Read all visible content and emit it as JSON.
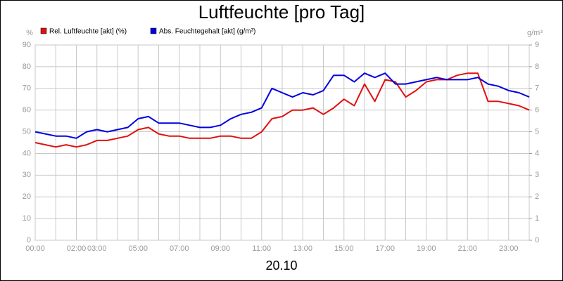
{
  "chart_data": {
    "type": "line",
    "title": "Luftfeuchte [pro Tag]",
    "xlabel": "20.10",
    "ylabel": "%",
    "y2label": "g/m³",
    "x": [
      0,
      0.5,
      1,
      1.5,
      2,
      2.5,
      3,
      3.5,
      4,
      4.5,
      5,
      5.5,
      6,
      6.5,
      7,
      7.5,
      8,
      8.5,
      9,
      9.5,
      10,
      10.5,
      11,
      11.5,
      12,
      12.5,
      13,
      13.5,
      14,
      14.5,
      15,
      15.5,
      16,
      16.5,
      17,
      17.5,
      18,
      18.5,
      19,
      19.5,
      20,
      20.5,
      21,
      21.5,
      22,
      22.5,
      23,
      23.5,
      24
    ],
    "series": [
      {
        "name": "Rel. Luftfeuchte [akt] (%)",
        "color": "#e01010",
        "axis": "y",
        "values": [
          45,
          44,
          43,
          44,
          43,
          44,
          46,
          46,
          47,
          48,
          51,
          52,
          49,
          48,
          48,
          47,
          47,
          47,
          48,
          48,
          47,
          47,
          50,
          56,
          57,
          60,
          60,
          61,
          58,
          61,
          65,
          62,
          72,
          64,
          74,
          73,
          66,
          69,
          73,
          74,
          74,
          76,
          77,
          77,
          64,
          64,
          63,
          62,
          60
        ]
      },
      {
        "name": "Abs. Feuchtegehalt [akt] (g/m³)",
        "color": "#0000e0",
        "axis": "y2",
        "values": [
          5.0,
          4.9,
          4.8,
          4.8,
          4.7,
          5.0,
          5.1,
          5.0,
          5.1,
          5.2,
          5.6,
          5.7,
          5.4,
          5.4,
          5.4,
          5.3,
          5.2,
          5.2,
          5.3,
          5.6,
          5.8,
          5.9,
          6.1,
          7.0,
          6.8,
          6.6,
          6.8,
          6.7,
          6.9,
          7.6,
          7.6,
          7.3,
          7.7,
          7.5,
          7.7,
          7.2,
          7.2,
          7.3,
          7.4,
          7.5,
          7.4,
          7.4,
          7.4,
          7.5,
          7.2,
          7.1,
          6.9,
          6.8,
          6.6
        ]
      }
    ],
    "xlim": [
      0,
      24
    ],
    "xticks": [
      {
        "value": 0,
        "label": "00:00"
      },
      {
        "value": 1
      },
      {
        "value": 2,
        "label": "02:00"
      },
      {
        "value": 3,
        "label": "03:00"
      },
      {
        "value": 4
      },
      {
        "value": 5,
        "label": "05:00"
      },
      {
        "value": 6
      },
      {
        "value": 7,
        "label": "07:00"
      },
      {
        "value": 8
      },
      {
        "value": 9,
        "label": "09:00"
      },
      {
        "value": 10
      },
      {
        "value": 11,
        "label": "11:00"
      },
      {
        "value": 12
      },
      {
        "value": 13,
        "label": "13:00"
      },
      {
        "value": 14
      },
      {
        "value": 15,
        "label": "15:00"
      },
      {
        "value": 16
      },
      {
        "value": 17,
        "label": "17:00"
      },
      {
        "value": 18
      },
      {
        "value": 19,
        "label": "19:00"
      },
      {
        "value": 20
      },
      {
        "value": 21,
        "label": "21:00"
      },
      {
        "value": 22
      },
      {
        "value": 23,
        "label": "23:00"
      },
      {
        "value": 24
      }
    ],
    "ylim": [
      0,
      90
    ],
    "yticks": [
      0,
      10,
      20,
      30,
      40,
      50,
      60,
      70,
      80,
      90
    ],
    "y2lim": [
      0,
      9
    ],
    "y2ticks": [
      0,
      1,
      2,
      3,
      4,
      5,
      6,
      7,
      8,
      9
    ],
    "grid": true
  }
}
